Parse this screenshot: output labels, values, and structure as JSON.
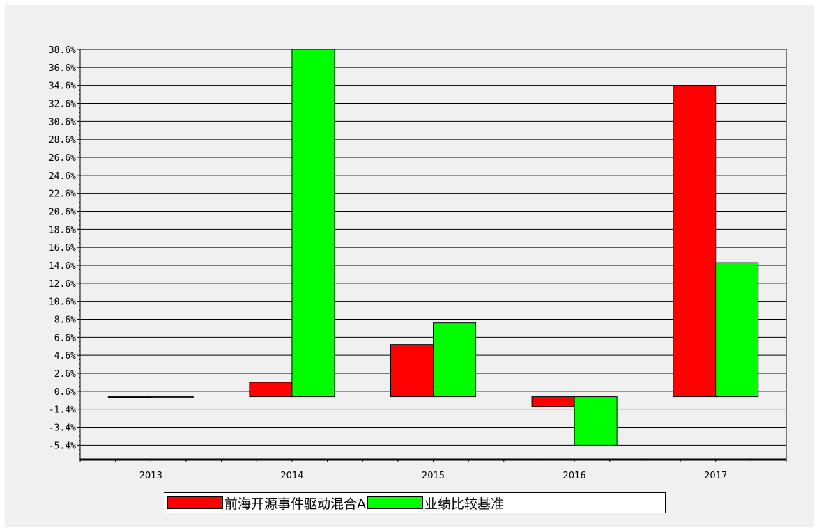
{
  "chart_data": {
    "type": "bar",
    "categories": [
      "2013",
      "2014",
      "2015",
      "2016",
      "2017"
    ],
    "series": [
      {
        "name": "前海开源事件驱动混合A",
        "color": "#ff0000",
        "values": [
          0.0,
          1.6,
          5.8,
          -1.1,
          34.6
        ]
      },
      {
        "name": "业绩比较基准",
        "color": "#00ff00",
        "values": [
          -0.1,
          38.6,
          8.2,
          -5.4,
          14.9
        ]
      }
    ],
    "yticks": [
      "38.6%",
      "36.6%",
      "34.6%",
      "32.6%",
      "30.6%",
      "28.6%",
      "26.6%",
      "24.6%",
      "22.6%",
      "20.6%",
      "18.6%",
      "16.6%",
      "14.6%",
      "12.6%",
      "10.6%",
      "8.6%",
      "6.6%",
      "4.6%",
      "2.6%",
      "0.6%",
      "-1.4%",
      "-3.4%",
      "-5.4%"
    ],
    "ylim": [
      -7.0,
      38.6
    ],
    "grid": true,
    "legend_position": "bottom",
    "background": "#f0f0f0"
  }
}
